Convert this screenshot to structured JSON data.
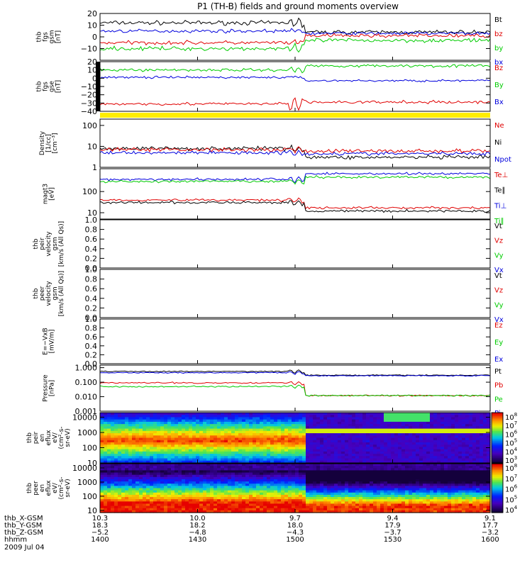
{
  "title": "P1 (TH-B) fields and ground moments overview",
  "colors": {
    "black": "#000000",
    "red": "#e00000",
    "green": "#00cc00",
    "blue": "#0000dd",
    "yellow": "#ffee00"
  },
  "chart_data": {
    "type": "line",
    "title": "P1 (TH-B) fields and ground moments overview",
    "x_ticks": [
      "1400",
      "1430",
      "1500",
      "1530",
      "1600"
    ],
    "x_range": [
      "1400",
      "1600"
    ],
    "transition_time": "1503",
    "panels": [
      {
        "id": "fgs-gsm",
        "ylabel": [
          "thb",
          "fgs",
          "gsm",
          "[nT]"
        ],
        "yscale": "linear",
        "ylim": [
          -20,
          20
        ],
        "ticks": [
          {
            "v": 20,
            "t": "20"
          },
          {
            "v": 10,
            "t": "10"
          },
          {
            "v": 0,
            "t": "0"
          },
          {
            "v": -10,
            "t": "−10"
          }
        ],
        "legend": [
          {
            "t": "Bt",
            "c": "black"
          },
          {
            "t": "bz",
            "c": "red"
          },
          {
            "t": "by",
            "c": "green"
          },
          {
            "t": "bx",
            "c": "blue"
          }
        ],
        "series": [
          {
            "name": "Bt",
            "color": "black",
            "before": 12,
            "after": 4,
            "noise": 1.5
          },
          {
            "name": "bx",
            "color": "blue",
            "before": 5,
            "after": 3,
            "noise": 1.2
          },
          {
            "name": "bz",
            "color": "red",
            "before": -5,
            "after": 1,
            "noise": 1.4
          },
          {
            "name": "by",
            "color": "green",
            "before": -10,
            "after": -3,
            "noise": 1.5
          }
        ]
      },
      {
        "id": "fgs-gse",
        "ylabel": [
          "thb",
          "fgs",
          "gse",
          "[nT]"
        ],
        "yscale": "linear",
        "ylim": [
          -40,
          20
        ],
        "ticks": [
          {
            "v": 20,
            "t": "20"
          },
          {
            "v": 10,
            "t": "10"
          },
          {
            "v": 0,
            "t": "0"
          },
          {
            "v": -10,
            "t": "−10"
          },
          {
            "v": -20,
            "t": "−20"
          },
          {
            "v": -30,
            "t": "−30"
          },
          {
            "v": -40,
            "t": "−40"
          }
        ],
        "legend": [
          {
            "t": "Bz",
            "c": "red"
          },
          {
            "t": "By",
            "c": "green"
          },
          {
            "t": "Bx",
            "c": "blue"
          }
        ],
        "series": [
          {
            "name": "By",
            "color": "green",
            "before": 10,
            "after": 15,
            "noise": 1.5
          },
          {
            "name": "Bx",
            "color": "blue",
            "before": 1,
            "after": -3,
            "noise": 1.2
          },
          {
            "name": "Bz",
            "color": "red",
            "before": -31,
            "after": -29,
            "noise": 1.5
          }
        ]
      },
      {
        "id": "density",
        "ylabel": [
          "Density",
          "[1/cc]",
          "[cm⁻³]"
        ],
        "yscale": "log",
        "ylim": [
          1,
          200
        ],
        "ticks": [
          {
            "v": 100,
            "t": "100"
          },
          {
            "v": 10,
            "t": "10"
          },
          {
            "v": 1,
            "t": "1"
          }
        ],
        "legend": [
          {
            "t": "Ne",
            "c": "red"
          },
          {
            "t": "Ni",
            "c": "black"
          },
          {
            "t": "Npot",
            "c": "blue"
          }
        ],
        "series": [
          {
            "name": "Ni",
            "color": "black",
            "before": 8,
            "after": 3,
            "noise": 0.08
          },
          {
            "name": "Ne",
            "color": "red",
            "before": 7,
            "after": 6,
            "noise": 0.08
          },
          {
            "name": "Npot",
            "color": "blue",
            "before": 5,
            "after": 4.5,
            "noise": 0.07
          }
        ]
      },
      {
        "id": "temperature",
        "ylabel": [
          "magt3",
          "[eV]"
        ],
        "yscale": "log",
        "ylim": [
          5,
          1200
        ],
        "ticks": [
          {
            "v": 100,
            "t": "100"
          },
          {
            "v": 10,
            "t": "10"
          }
        ],
        "legend": [
          {
            "t": "Te⊥",
            "c": "red"
          },
          {
            "t": "Te∥",
            "c": "black"
          },
          {
            "t": "Ti⊥",
            "c": "blue"
          },
          {
            "t": "Ti∥",
            "c": "green"
          }
        ],
        "series": [
          {
            "name": "Ti⊥",
            "color": "blue",
            "before": 380,
            "after": 700,
            "noise": 0.05
          },
          {
            "name": "Ti∥",
            "color": "green",
            "before": 300,
            "after": 480,
            "noise": 0.05
          },
          {
            "name": "Te⊥",
            "color": "red",
            "before": 40,
            "after": 17,
            "noise": 0.05
          },
          {
            "name": "Te∥",
            "color": "black",
            "before": 30,
            "after": 12,
            "noise": 0.05
          }
        ]
      },
      {
        "id": "peir-velocity",
        "ylabel": [
          "thb",
          "peir",
          "velocity",
          "gsm",
          "[km/s (All Qs)]"
        ],
        "yscale": "linear",
        "ylim": [
          0,
          1
        ],
        "ticks": [
          {
            "v": 1,
            "t": "1.0"
          },
          {
            "v": 0.8,
            "t": "0.8"
          },
          {
            "v": 0.6,
            "t": "0.6"
          },
          {
            "v": 0.4,
            "t": "0.4"
          },
          {
            "v": 0.2,
            "t": "0.2"
          },
          {
            "v": 0,
            "t": "0.0"
          }
        ],
        "legend": [
          {
            "t": "Vt",
            "c": "black"
          },
          {
            "t": "Vz",
            "c": "red"
          },
          {
            "t": "Vy",
            "c": "green"
          },
          {
            "t": "Vx",
            "c": "blue"
          }
        ],
        "series": []
      },
      {
        "id": "peer-velocity",
        "ylabel": [
          "thb",
          "peer",
          "velocity",
          "gsm",
          "[km/s (All Qs)]"
        ],
        "yscale": "linear",
        "ylim": [
          0,
          1
        ],
        "ticks": [
          {
            "v": 1,
            "t": "1.0"
          },
          {
            "v": 0.8,
            "t": "0.8"
          },
          {
            "v": 0.6,
            "t": "0.6"
          },
          {
            "v": 0.4,
            "t": "0.4"
          },
          {
            "v": 0.2,
            "t": "0.2"
          },
          {
            "v": 0,
            "t": "0.0"
          }
        ],
        "legend": [
          {
            "t": "Vt",
            "c": "black"
          },
          {
            "t": "Vz",
            "c": "red"
          },
          {
            "t": "Vy",
            "c": "green"
          },
          {
            "t": "Vx",
            "c": "blue"
          }
        ],
        "series": []
      },
      {
        "id": "e-field",
        "ylabel": [
          "E=−VxB",
          "[mV/m]"
        ],
        "yscale": "linear",
        "ylim": [
          0,
          1
        ],
        "ticks": [
          {
            "v": 1,
            "t": "1.0"
          },
          {
            "v": 0.8,
            "t": "0.8"
          },
          {
            "v": 0.6,
            "t": "0.6"
          },
          {
            "v": 0.4,
            "t": "0.4"
          },
          {
            "v": 0.2,
            "t": "0.2"
          },
          {
            "v": 0,
            "t": "0.0"
          }
        ],
        "legend": [
          {
            "t": "Ez",
            "c": "red"
          },
          {
            "t": "Ey",
            "c": "green"
          },
          {
            "t": "Ex",
            "c": "blue"
          }
        ],
        "series": []
      },
      {
        "id": "pressure",
        "ylabel": [
          "Pressure",
          "[nPa]"
        ],
        "yscale": "log",
        "ylim": [
          0.001,
          1.5
        ],
        "ticks": [
          {
            "v": 1,
            "t": "1.000"
          },
          {
            "v": 0.1,
            "t": "0.100"
          },
          {
            "v": 0.01,
            "t": "0.010"
          },
          {
            "v": 0.001,
            "t": "0.001"
          }
        ],
        "legend": [
          {
            "t": "Pt",
            "c": "black"
          },
          {
            "t": "Pb",
            "c": "red"
          },
          {
            "t": "Pe",
            "c": "green"
          },
          {
            "t": "Pi",
            "c": "blue"
          }
        ],
        "series": [
          {
            "name": "Pt",
            "color": "black",
            "before": 0.55,
            "after": 0.3,
            "noise": 0.03
          },
          {
            "name": "Pi",
            "color": "blue",
            "before": 0.45,
            "after": 0.28,
            "noise": 0.03
          },
          {
            "name": "Pb",
            "color": "red",
            "before": 0.09,
            "after": 0.012,
            "noise": 0.04
          },
          {
            "name": "Pe",
            "color": "green",
            "before": 0.05,
            "after": 0.012,
            "noise": 0.04
          }
        ]
      },
      {
        "id": "peir-spectrogram",
        "type": "heatmap",
        "ylabel": [
          "thb",
          "peir",
          "en",
          "eflux",
          "eV/",
          "(cm²-s-",
          "sr-eV)"
        ],
        "yscale": "log",
        "ylim": [
          10,
          20000
        ],
        "ticks": [
          {
            "v": 10000,
            "t": "10000"
          },
          {
            "v": 1000,
            "t": "1000"
          },
          {
            "v": 100,
            "t": "100"
          },
          {
            "v": 10,
            "t": "10"
          }
        ],
        "colorbar": [
          {
            "t": "10",
            "e": "8"
          },
          {
            "t": "10",
            "e": "7"
          },
          {
            "t": "10",
            "e": "6"
          },
          {
            "t": "10",
            "e": "5"
          },
          {
            "t": "10",
            "e": "4"
          },
          {
            "t": "10",
            "e": "3"
          }
        ]
      },
      {
        "id": "peer-spectrogram",
        "type": "heatmap",
        "ylabel": [
          "thb",
          "peer",
          "en",
          "eflux",
          "eV/",
          "(cm²-s-",
          "sr-eV)"
        ],
        "yscale": "log",
        "ylim": [
          7,
          20000
        ],
        "ticks": [
          {
            "v": 10000,
            "t": "10000"
          },
          {
            "v": 1000,
            "t": "1000"
          },
          {
            "v": 100,
            "t": "100"
          },
          {
            "v": 10,
            "t": "10"
          }
        ],
        "colorbar": [
          {
            "t": "10",
            "e": "8"
          },
          {
            "t": "10",
            "e": "7"
          },
          {
            "t": "10",
            "e": "6"
          },
          {
            "t": "10",
            "e": "5"
          },
          {
            "t": "10",
            "e": "4"
          }
        ]
      }
    ],
    "x_annotations": {
      "rows": [
        {
          "label": "thb_X-GSM",
          "values": [
            "10.3",
            "10.0",
            "9.7",
            "9.4",
            "9.1"
          ]
        },
        {
          "label": "thb_Y-GSM",
          "values": [
            "18.3",
            "18.2",
            "18.0",
            "17.9",
            "17.7"
          ]
        },
        {
          "label": "thb_Z-GSM",
          "values": [
            "−5.2",
            "−4.8",
            "−4.3",
            "−3.7",
            "−3.2"
          ]
        },
        {
          "label": "hhmm",
          "values": [
            "1400",
            "1430",
            "1500",
            "1530",
            "1600"
          ]
        }
      ],
      "date": "2009 Jul 04"
    }
  }
}
